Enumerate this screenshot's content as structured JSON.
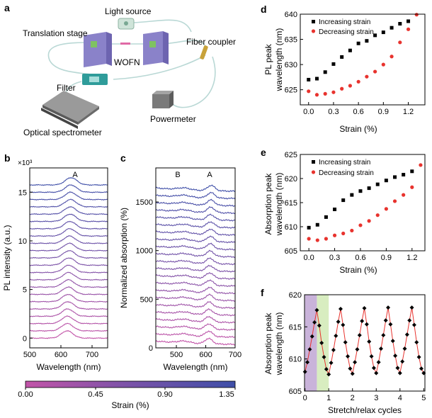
{
  "panel_letters": {
    "a": "a",
    "b": "b",
    "c": "c",
    "d": "d",
    "e": "e",
    "f": "f"
  },
  "schematic": {
    "light_source": "Light source",
    "translation_stage": "Translation stage",
    "wofn": "WOFN",
    "fiber_coupler": "Fiber coupler",
    "filter": "Filter",
    "powermeter": "Powermeter",
    "optical_spectrometer": "Optical spectrometer"
  },
  "colorbar": {
    "label": "Strain (%)",
    "ticks": [
      "0.00",
      "0.45",
      "0.90",
      "1.35"
    ],
    "colors": [
      "#c254a8",
      "#7a53a8",
      "#3f4fa8"
    ]
  },
  "chart_data": [
    {
      "id": "b",
      "type": "line",
      "xlabel": "Wavelength (nm)",
      "ylabel": "PL intensity (a.u.)",
      "yexp": "×10³",
      "xlim": [
        500,
        750
      ],
      "ylim": [
        -1,
        17.5
      ],
      "xticks": [
        "500",
        "600",
        "700"
      ],
      "yticks": [
        "0",
        "5",
        "10",
        "15"
      ],
      "annotations": [
        "A"
      ],
      "n_traces": 22,
      "trace_spacing": 0.75,
      "peak_center_nm": 620,
      "peak_height": 0.75
    },
    {
      "id": "c",
      "type": "line",
      "xlabel": "Wavelength (nm)",
      "ylabel": "Normalized absorption (%)",
      "xlim": [
        430,
        700
      ],
      "ylim": [
        0,
        1850
      ],
      "xticks": [
        "500",
        "600",
        "700"
      ],
      "yticks": [
        "0",
        "500",
        "1000",
        "1500"
      ],
      "annotations": [
        "B",
        "A"
      ],
      "n_traces": 22,
      "trace_spacing": 75,
      "peak_A_nm": 610,
      "peak_B_nm": 525
    },
    {
      "id": "d",
      "type": "scatter",
      "xlabel": "Strain (%)",
      "ylabel": "PL peak wavelength (nm)",
      "xlim": [
        -0.1,
        1.4
      ],
      "ylim": [
        622,
        640
      ],
      "xticks": [
        "0.0",
        "0.3",
        "0.6",
        "0.9",
        "1.2"
      ],
      "yticks": [
        "625",
        "630",
        "635",
        "640"
      ],
      "legend": "top-left",
      "series": [
        {
          "name": "Increasing strain",
          "color": "#000000",
          "marker": "square",
          "x": [
            0,
            0.1,
            0.2,
            0.3,
            0.4,
            0.5,
            0.6,
            0.7,
            0.8,
            0.9,
            1.0,
            1.1,
            1.2
          ],
          "y": [
            627.0,
            627.2,
            628.5,
            630.1,
            631.5,
            632.8,
            634.2,
            634.7,
            635.8,
            636.4,
            637.3,
            638.1,
            638.6
          ]
        },
        {
          "name": "Decreasing strain",
          "color": "#e8332e",
          "marker": "circle",
          "x": [
            0,
            0.1,
            0.2,
            0.3,
            0.4,
            0.5,
            0.6,
            0.7,
            0.8,
            0.9,
            1.0,
            1.1,
            1.2,
            1.3
          ],
          "y": [
            624.7,
            624.0,
            624.2,
            624.5,
            625.2,
            625.8,
            626.6,
            627.6,
            628.6,
            630.0,
            631.6,
            634.4,
            637.0,
            639.9
          ]
        }
      ]
    },
    {
      "id": "e",
      "type": "scatter",
      "xlabel": "Strain (%)",
      "ylabel": "Absorption peak wavelength (nm)",
      "xlim": [
        -0.1,
        1.35
      ],
      "ylim": [
        605,
        625
      ],
      "xticks": [
        "0.0",
        "0.3",
        "0.6",
        "0.9",
        "1.2"
      ],
      "yticks": [
        "605",
        "610",
        "615",
        "620",
        "625"
      ],
      "legend": "top-left",
      "series": [
        {
          "name": "Increasing strain",
          "color": "#000000",
          "marker": "square",
          "x": [
            0,
            0.1,
            0.2,
            0.3,
            0.4,
            0.5,
            0.6,
            0.7,
            0.8,
            0.9,
            1.0,
            1.1,
            1.2
          ],
          "y": [
            609.8,
            610.4,
            612.0,
            613.6,
            615.5,
            616.6,
            617.4,
            618.0,
            618.8,
            619.6,
            620.3,
            620.8,
            621.5
          ]
        },
        {
          "name": "Decreasing strain",
          "color": "#e8332e",
          "marker": "circle",
          "x": [
            0,
            0.1,
            0.2,
            0.3,
            0.4,
            0.5,
            0.6,
            0.7,
            0.8,
            0.9,
            1.0,
            1.1,
            1.2,
            1.3
          ],
          "y": [
            607.5,
            607.2,
            607.5,
            608.2,
            608.6,
            609.2,
            610.3,
            611.2,
            612.4,
            613.7,
            615.3,
            616.6,
            618.2,
            622.8
          ]
        }
      ]
    },
    {
      "id": "f",
      "type": "line",
      "xlabel": "Stretch/relax cycles",
      "ylabel": "Absorption peak wavelength (nm)",
      "xlim": [
        -0.02,
        5.05
      ],
      "ylim": [
        605,
        620
      ],
      "xticks": [
        "0",
        "1",
        "2",
        "3",
        "4",
        "5"
      ],
      "yticks": [
        "605",
        "610",
        "615",
        "620"
      ],
      "shade_stretch": [
        0,
        0.5,
        "#c9b3da"
      ],
      "shade_relax": [
        0.5,
        1.0,
        "#d8edc0"
      ],
      "x": [
        0,
        0.1,
        0.2,
        0.3,
        0.4,
        0.5,
        0.6,
        0.7,
        0.8,
        0.9,
        1.0,
        1.1,
        1.2,
        1.3,
        1.4,
        1.5,
        1.6,
        1.7,
        1.8,
        1.9,
        2.0,
        2.1,
        2.2,
        2.3,
        2.4,
        2.5,
        2.6,
        2.7,
        2.8,
        2.9,
        3.0,
        3.1,
        3.2,
        3.3,
        3.4,
        3.5,
        3.6,
        3.7,
        3.8,
        3.9,
        4.0,
        4.1,
        4.2,
        4.3,
        4.4,
        4.5,
        4.6,
        4.7,
        4.8,
        4.9,
        5.0
      ],
      "y": [
        608.0,
        609.5,
        611.5,
        613.5,
        615.7,
        617.6,
        615.2,
        612.5,
        610.3,
        608.4,
        607.6,
        609.4,
        611.4,
        613.6,
        615.8,
        617.8,
        615.3,
        612.6,
        610.4,
        608.5,
        607.7,
        609.5,
        611.5,
        613.7,
        615.9,
        617.9,
        615.4,
        612.7,
        610.4,
        608.6,
        607.8,
        609.5,
        611.6,
        613.7,
        616.0,
        618.0,
        615.4,
        612.8,
        610.5,
        608.6,
        607.8,
        609.6,
        611.6,
        613.8,
        616.0,
        618.0,
        615.3,
        612.6,
        610.3,
        608.5,
        607.8
      ]
    }
  ]
}
